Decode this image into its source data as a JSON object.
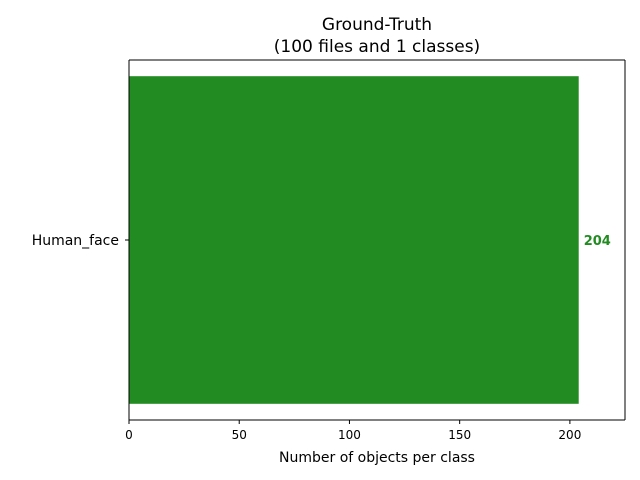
{
  "chart_data": {
    "type": "bar",
    "orientation": "horizontal",
    "title": "Ground-Truth",
    "subtitle": "(100 files and 1 classes)",
    "categories": [
      "Human_face"
    ],
    "values": [
      204
    ],
    "data_labels": [
      "204"
    ],
    "xlabel": "Number of objects per class",
    "ylabel": "",
    "xlim": [
      0,
      225
    ],
    "xticks": [
      0,
      50,
      100,
      150,
      200
    ],
    "xtick_labels": [
      "0",
      "50",
      "100",
      "150",
      "200"
    ],
    "bar_color": "#228b22",
    "grid": false,
    "legend": "none"
  }
}
